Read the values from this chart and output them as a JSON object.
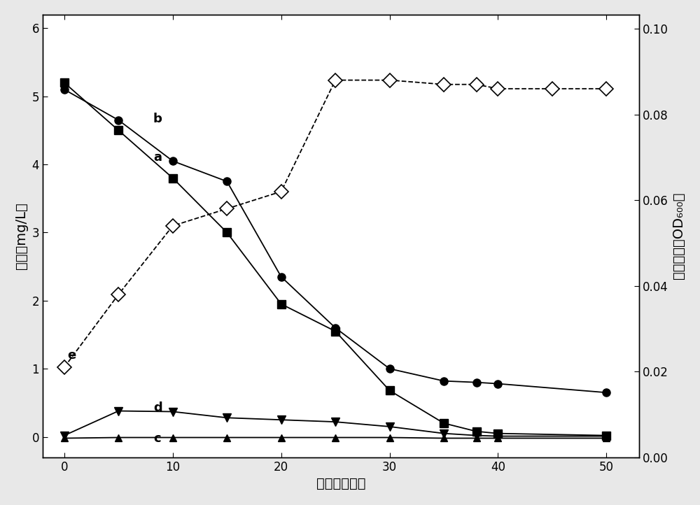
{
  "series_a_x": [
    0,
    5,
    10,
    15,
    20,
    25,
    30,
    35,
    38,
    40,
    50
  ],
  "series_a_y": [
    5.1,
    4.65,
    4.05,
    3.75,
    2.35,
    1.6,
    1.0,
    0.82,
    0.8,
    0.78,
    0.65
  ],
  "series_b_x": [
    0,
    5,
    10,
    15,
    20,
    25,
    30,
    35,
    38,
    40,
    50
  ],
  "series_b_y": [
    5.2,
    4.5,
    3.8,
    3.0,
    1.95,
    1.55,
    0.68,
    0.2,
    0.08,
    0.05,
    0.02
  ],
  "series_c_x": [
    0,
    5,
    10,
    15,
    20,
    25,
    30,
    35,
    38,
    40,
    50
  ],
  "series_c_y": [
    -0.02,
    -0.01,
    -0.01,
    -0.01,
    -0.01,
    -0.01,
    -0.01,
    -0.02,
    -0.02,
    -0.02,
    -0.02
  ],
  "series_d_x": [
    0,
    5,
    10,
    15,
    20,
    25,
    30,
    35,
    38,
    40,
    50
  ],
  "series_d_y": [
    0.02,
    0.38,
    0.37,
    0.28,
    0.25,
    0.22,
    0.15,
    0.05,
    0.02,
    0.01,
    0.01
  ],
  "series_e_x": [
    0,
    5,
    10,
    15,
    20,
    25,
    30,
    35,
    38,
    40,
    45,
    50
  ],
  "series_e_y_od": [
    0.021,
    0.038,
    0.054,
    0.058,
    0.062,
    0.088,
    0.088,
    0.087,
    0.087,
    0.086,
    0.086,
    0.086
  ],
  "xlabel": "时间（小时）",
  "ylabel_left": "浓度（mg/L）",
  "ylabel_right": "细菌浓度（OD₆₀₀）",
  "xlim": [
    -2,
    53
  ],
  "ylim_left": [
    -0.3,
    6.2
  ],
  "ylim_right": [
    0.0,
    0.1033
  ],
  "yticks_left": [
    0,
    1,
    2,
    3,
    4,
    5,
    6
  ],
  "yticks_right": [
    0.0,
    0.02,
    0.04,
    0.06,
    0.08,
    0.1
  ],
  "xticks": [
    0,
    10,
    20,
    30,
    40,
    50
  ],
  "bg_color": "#ffffff",
  "fig_bg_color": "#e8e8e8",
  "line_color": "#000000",
  "label_a": "a",
  "label_b": "b",
  "label_c": "c",
  "label_d": "d",
  "label_e": "e",
  "label_fontsize": 13,
  "tick_fontsize": 12,
  "axis_label_fontsize": 14
}
